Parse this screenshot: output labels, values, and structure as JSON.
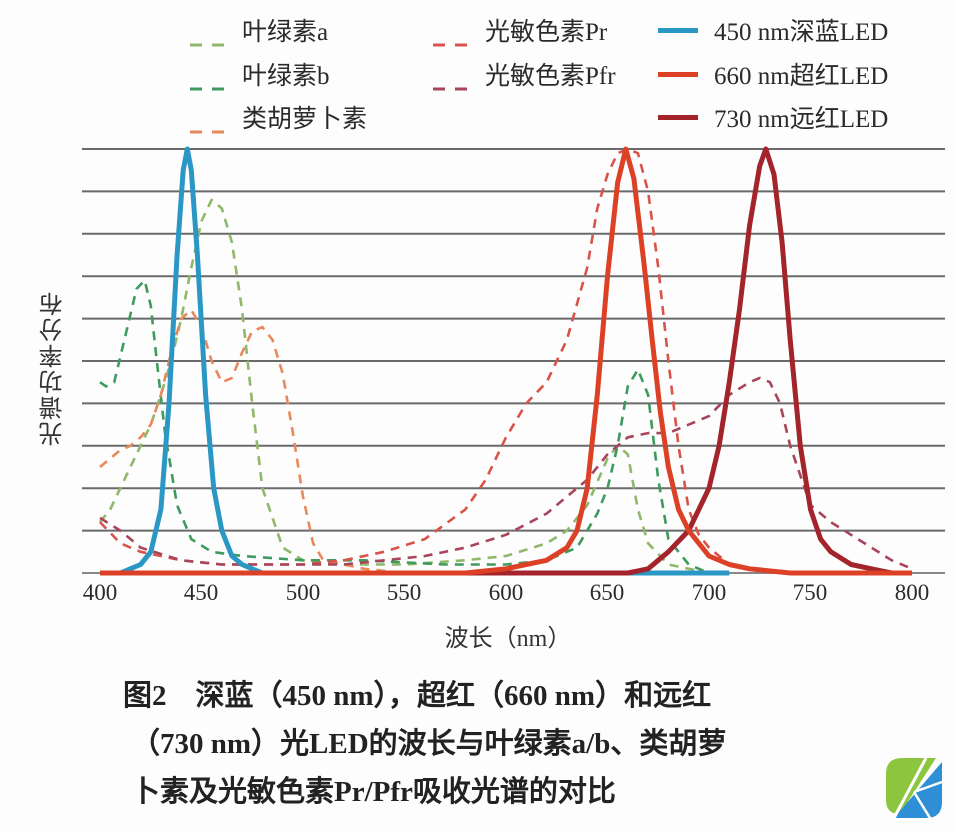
{
  "chart_data": {
    "type": "line",
    "title": "图2 深蓝（450 nm），超红（660 nm）和远红（730 nm）光LED的波长与叶绿素a/b、类胡萝卜素及光敏色素Pr/Pfr吸收光谱的对比",
    "xlabel": "波长（nm）",
    "ylabel": "光谱功率分布",
    "xlim": [
      392,
      808
    ],
    "ylim": [
      0,
      1
    ],
    "xticks": [
      400,
      450,
      500,
      550,
      600,
      650,
      700,
      750,
      800
    ],
    "grid": true,
    "grid_lines_y": [
      0.1,
      0.2,
      0.3,
      0.4,
      0.5,
      0.6,
      0.7,
      0.8,
      0.9,
      1.0
    ],
    "legend_position": "top",
    "series": [
      {
        "name": "叶绿素a",
        "style": "dashed",
        "color": "#8fb86a",
        "x": [
          400,
          405,
          410,
          415,
          420,
          425,
          430,
          435,
          440,
          445,
          450,
          455,
          460,
          465,
          470,
          475,
          480,
          490,
          500,
          520,
          550,
          580,
          600,
          620,
          630,
          640,
          650,
          655,
          660,
          665,
          670,
          680,
          700
        ],
        "values": [
          0.12,
          0.15,
          0.2,
          0.25,
          0.3,
          0.35,
          0.42,
          0.5,
          0.6,
          0.72,
          0.83,
          0.88,
          0.86,
          0.78,
          0.62,
          0.4,
          0.2,
          0.06,
          0.03,
          0.02,
          0.02,
          0.03,
          0.04,
          0.07,
          0.1,
          0.16,
          0.27,
          0.3,
          0.28,
          0.15,
          0.07,
          0.02,
          0.0
        ]
      },
      {
        "name": "叶绿素b",
        "style": "dashed",
        "color": "#3f9a5e",
        "x": [
          400,
          403,
          407,
          412,
          418,
          422,
          425,
          428,
          432,
          438,
          445,
          455,
          470,
          500,
          530,
          570,
          600,
          620,
          635,
          645,
          650,
          655,
          660,
          665,
          670,
          675,
          680,
          690,
          700
        ],
        "values": [
          0.45,
          0.44,
          0.45,
          0.55,
          0.67,
          0.69,
          0.63,
          0.5,
          0.33,
          0.16,
          0.08,
          0.05,
          0.04,
          0.03,
          0.03,
          0.02,
          0.02,
          0.03,
          0.06,
          0.14,
          0.2,
          0.3,
          0.44,
          0.48,
          0.42,
          0.22,
          0.08,
          0.02,
          0.0
        ]
      },
      {
        "name": "类胡萝卜素",
        "style": "dashed",
        "color": "#e8895a",
        "x": [
          400,
          405,
          410,
          415,
          420,
          425,
          430,
          435,
          440,
          445,
          450,
          455,
          460,
          465,
          470,
          475,
          480,
          485,
          490,
          495,
          500,
          505,
          510,
          520,
          530,
          550
        ],
        "values": [
          0.25,
          0.27,
          0.29,
          0.3,
          0.32,
          0.35,
          0.42,
          0.52,
          0.6,
          0.62,
          0.58,
          0.5,
          0.45,
          0.46,
          0.52,
          0.57,
          0.58,
          0.55,
          0.47,
          0.33,
          0.18,
          0.07,
          0.03,
          0.02,
          0.01,
          0.0
        ]
      },
      {
        "name": "光敏色素Pr",
        "style": "dashed",
        "color": "#d9534a",
        "x": [
          400,
          410,
          420,
          440,
          460,
          480,
          500,
          520,
          540,
          560,
          580,
          590,
          600,
          610,
          620,
          630,
          640,
          645,
          650,
          655,
          660,
          665,
          670,
          675,
          680,
          685,
          690,
          695,
          700,
          710,
          720,
          740
        ],
        "values": [
          0.12,
          0.07,
          0.05,
          0.03,
          0.02,
          0.02,
          0.02,
          0.03,
          0.05,
          0.08,
          0.15,
          0.22,
          0.32,
          0.4,
          0.45,
          0.55,
          0.72,
          0.86,
          0.94,
          0.99,
          1.0,
          0.99,
          0.9,
          0.72,
          0.5,
          0.3,
          0.15,
          0.09,
          0.06,
          0.02,
          0.01,
          0.0
        ]
      },
      {
        "name": "光敏色素Pfr",
        "style": "dashed",
        "color": "#a8455a",
        "x": [
          400,
          410,
          420,
          440,
          460,
          480,
          500,
          520,
          540,
          560,
          580,
          600,
          620,
          640,
          650,
          660,
          670,
          680,
          690,
          700,
          710,
          720,
          725,
          730,
          735,
          740,
          750,
          760,
          770,
          780,
          790,
          800
        ],
        "values": [
          0.13,
          0.1,
          0.06,
          0.03,
          0.02,
          0.02,
          0.02,
          0.02,
          0.03,
          0.04,
          0.06,
          0.09,
          0.14,
          0.22,
          0.28,
          0.32,
          0.33,
          0.33,
          0.35,
          0.37,
          0.42,
          0.45,
          0.46,
          0.45,
          0.4,
          0.3,
          0.16,
          0.12,
          0.09,
          0.06,
          0.03,
          0.01
        ]
      },
      {
        "name": "450 nm深蓝LED",
        "style": "solid",
        "color": "#2b97c4",
        "x": [
          400,
          410,
          420,
          425,
          430,
          434,
          438,
          441,
          443,
          445,
          448,
          452,
          456,
          460,
          465,
          470,
          475,
          480,
          490,
          500,
          520,
          560,
          600,
          650,
          670,
          700,
          710
        ],
        "values": [
          0.0,
          0.0,
          0.02,
          0.05,
          0.15,
          0.4,
          0.75,
          0.95,
          1.0,
          0.95,
          0.75,
          0.42,
          0.2,
          0.1,
          0.04,
          0.02,
          0.01,
          0.0,
          0.0,
          0.0,
          0.0,
          0.0,
          0.0,
          0.0,
          0.0,
          0.0,
          0.0
        ]
      },
      {
        "name": "660 nm超红LED",
        "style": "solid",
        "color": "#dc4126",
        "x": [
          400,
          500,
          580,
          600,
          610,
          620,
          630,
          635,
          640,
          645,
          650,
          655,
          659,
          663,
          668,
          672,
          676,
          680,
          685,
          690,
          700,
          710,
          720,
          740,
          780,
          800
        ],
        "values": [
          0.0,
          0.0,
          0.0,
          0.01,
          0.02,
          0.03,
          0.06,
          0.1,
          0.2,
          0.42,
          0.7,
          0.92,
          1.0,
          0.93,
          0.73,
          0.55,
          0.38,
          0.25,
          0.15,
          0.1,
          0.04,
          0.02,
          0.01,
          0.0,
          0.0,
          0.0
        ]
      },
      {
        "name": "730 nm远红LED",
        "style": "solid",
        "color": "#a3242a",
        "x": [
          400,
          600,
          660,
          670,
          680,
          690,
          700,
          705,
          710,
          715,
          720,
          725,
          728,
          732,
          736,
          740,
          745,
          750,
          755,
          760,
          770,
          780,
          790,
          800
        ],
        "values": [
          0.0,
          0.0,
          0.0,
          0.01,
          0.05,
          0.1,
          0.2,
          0.3,
          0.45,
          0.62,
          0.82,
          0.96,
          1.0,
          0.94,
          0.78,
          0.55,
          0.3,
          0.15,
          0.08,
          0.05,
          0.02,
          0.01,
          0.0,
          0.0
        ]
      }
    ]
  },
  "legend": {
    "items": [
      {
        "label": "叶绿素a",
        "color": "#8fb86a",
        "style": "dashed"
      },
      {
        "label": "叶绿素b",
        "color": "#3f9a5e",
        "style": "dashed"
      },
      {
        "label": "类胡萝卜素",
        "color": "#e8895a",
        "style": "dashed"
      },
      {
        "label": "光敏色素Pr",
        "color": "#d9534a",
        "style": "dashed"
      },
      {
        "label": "光敏色素Pfr",
        "color": "#a8455a",
        "style": "dashed"
      },
      {
        "label": "450 nm深蓝LED",
        "color": "#2b97c4",
        "style": "solid"
      },
      {
        "label": "660 nm超红LED",
        "color": "#dc4126",
        "style": "solid"
      },
      {
        "label": "730 nm远红LED",
        "color": "#a3242a",
        "style": "solid"
      }
    ]
  },
  "axes": {
    "ylabel": "光谱功率分布",
    "xlabel": "波长（nm）",
    "xticks": [
      "400",
      "450",
      "500",
      "550",
      "600",
      "650",
      "700",
      "750",
      "800"
    ]
  },
  "caption": {
    "line1": "图2　深蓝（450 nm），超红（660 nm）和远红",
    "line2": "（730  nm）光LED的波长与叶绿素a/b、类胡萝",
    "line3": "卜素及光敏色素Pr/Pfr吸收光谱的对比"
  },
  "logo": {
    "name": "leaf-logo",
    "colors": [
      "#8cc63f",
      "#2f8fd6"
    ]
  }
}
